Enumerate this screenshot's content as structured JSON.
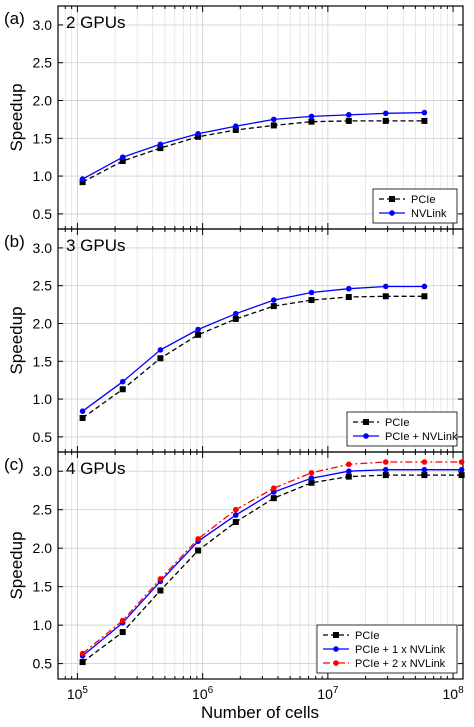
{
  "figure": {
    "xlabel": "Number of cells",
    "ylabel": "Speedup",
    "xscale": "log",
    "xlim": [
      70000,
      120000000
    ],
    "ylim": [
      0.3,
      3.25
    ],
    "x_tick_labels": [
      "10^5",
      "10^6",
      "10^7",
      "10^8"
    ],
    "y_tick_labels": [
      "0.5",
      "1.0",
      "1.5",
      "2.0",
      "2.5",
      "3.0"
    ]
  },
  "colors": {
    "pcie": "#000000",
    "nvlink": "#0000ff",
    "nvlink2": "#ff0000",
    "grid": "#d3d3d3"
  },
  "chart_data": [
    {
      "type": "line",
      "panel_label": "(a)",
      "title": "2 GPUs",
      "legend_position": "bottom-right",
      "xscale": "log",
      "x": [
        110000,
        230000,
        460000,
        920000,
        1840000,
        3700000,
        7400000,
        14700000,
        29000000,
        59000000
      ],
      "series": [
        {
          "name": "PCIe",
          "style": "dashed",
          "marker": "square",
          "values": [
            0.92,
            1.2,
            1.37,
            1.52,
            1.61,
            1.67,
            1.72,
            1.73,
            1.73,
            1.73
          ]
        },
        {
          "name": "NVLink",
          "style": "solid",
          "marker": "circle",
          "values": [
            0.96,
            1.25,
            1.42,
            1.56,
            1.66,
            1.75,
            1.79,
            1.81,
            1.83,
            1.84
          ]
        }
      ]
    },
    {
      "type": "line",
      "panel_label": "(b)",
      "title": "3 GPUs",
      "legend_position": "bottom-right",
      "xscale": "log",
      "x": [
        110000,
        230000,
        460000,
        920000,
        1840000,
        3700000,
        7400000,
        14700000,
        29000000,
        59000000
      ],
      "series": [
        {
          "name": "PCIe",
          "style": "dashed",
          "marker": "square",
          "values": [
            0.75,
            1.13,
            1.54,
            1.85,
            2.06,
            2.23,
            2.31,
            2.35,
            2.36,
            2.36
          ]
        },
        {
          "name": "PCIe + NVLink",
          "style": "solid",
          "marker": "circle",
          "values": [
            0.84,
            1.23,
            1.65,
            1.92,
            2.13,
            2.31,
            2.41,
            2.46,
            2.49,
            2.49
          ]
        }
      ]
    },
    {
      "type": "line",
      "panel_label": "(c)",
      "title": "4 GPUs",
      "legend_position": "bottom-right",
      "xscale": "log",
      "x": [
        110000,
        230000,
        460000,
        920000,
        1840000,
        3700000,
        7400000,
        14700000,
        29000000,
        59000000,
        117000000
      ],
      "series": [
        {
          "name": "PCIe",
          "style": "dashed",
          "marker": "square",
          "values": [
            0.52,
            0.91,
            1.45,
            1.97,
            2.34,
            2.65,
            2.85,
            2.93,
            2.95,
            2.95,
            2.95
          ]
        },
        {
          "name": "PCIe + 1 x NVLink",
          "style": "solid",
          "marker": "circle",
          "values": [
            0.6,
            1.03,
            1.57,
            2.09,
            2.43,
            2.73,
            2.91,
            3.0,
            3.02,
            3.02,
            3.02
          ]
        },
        {
          "name": "PCIe + 2 x NVLink",
          "style": "dashdot",
          "marker": "circle",
          "values": [
            0.63,
            1.06,
            1.6,
            2.12,
            2.5,
            2.78,
            2.98,
            3.09,
            3.12,
            3.12,
            3.12
          ]
        }
      ]
    }
  ]
}
